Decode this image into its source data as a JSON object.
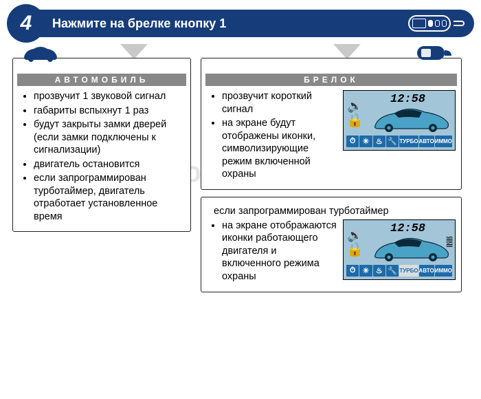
{
  "colors": {
    "brand": "#163d7a",
    "tab_bg": "#888888",
    "lcd_bg": "#a2c5d8",
    "lcd_chip": "#1e6aa8",
    "arrow": "#c9c9c9"
  },
  "step_number": "4",
  "header_title": "Нажмите на брелке кнопку 1",
  "watermark": "www.autoradioservice.ru",
  "car_panel": {
    "tab": "АВТОМОБИЛЬ",
    "items": [
      "прозвучит 1 звуковой сигнал",
      "габариты вспыхнут 1 раз",
      "будут закрыты замки дверей (если замки подключены к сигнализации)",
      "двигатель остановится",
      "если запрограммирован турботаймер, двигатель отработает установленное время"
    ]
  },
  "remote_panel": {
    "tab": "БРЕЛОК",
    "items": [
      "прозвучит короткий сигнал",
      "на экране будут отображены иконки, символизирующие режим включенной охраны"
    ],
    "lcd": {
      "time": "12:58",
      "engine_running": false,
      "chips": [
        {
          "type": "icon",
          "glyph": "⏱"
        },
        {
          "type": "icon",
          "glyph": "✳"
        },
        {
          "type": "icon",
          "glyph": "♨"
        },
        {
          "type": "icon",
          "glyph": "🔧"
        },
        {
          "type": "text",
          "label": "ТУРБО"
        },
        {
          "type": "text",
          "label": "АВТО"
        },
        {
          "type": "text",
          "label": "ИММО"
        }
      ]
    }
  },
  "turbo_panel": {
    "note": "если  запрограммирован турботаймер",
    "items": [
      "на экране отображаются иконки работающего двигателя и включенного режима охраны"
    ],
    "lcd": {
      "time": "12:58",
      "engine_running": true,
      "chips": [
        {
          "type": "icon",
          "glyph": "⏱"
        },
        {
          "type": "icon",
          "glyph": "✳"
        },
        {
          "type": "icon",
          "glyph": "♨"
        },
        {
          "type": "icon",
          "glyph": "🔧"
        },
        {
          "type": "text",
          "label": "ТУРБО",
          "inverted": true
        },
        {
          "type": "text",
          "label": "АВТО"
        },
        {
          "type": "text",
          "label": "ИММО"
        }
      ]
    }
  }
}
